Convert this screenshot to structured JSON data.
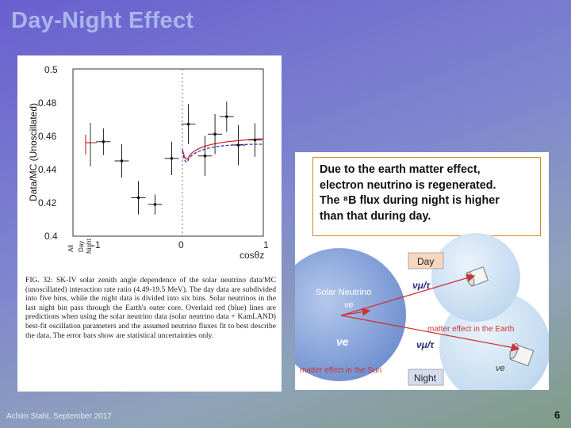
{
  "slide": {
    "title": "Day-Night Effect",
    "footer": "Achim Stahl, September 2017",
    "page_number": "6"
  },
  "figure": {
    "ylabel": "Data/MC (Unoscillated)",
    "xlabel": "cosθz",
    "y_ticks": [
      "0.5",
      "0.48",
      "0.46",
      "0.44",
      "0.42",
      "0.4"
    ],
    "x_ticks": [
      "-1",
      "0",
      "1"
    ],
    "all_label": "All",
    "day_label": "Day",
    "night_label": "Night",
    "caption": "FIG. 32: SK-IV solar zenith angle dependence of the solar neutrino data/MC (unoscillated) interaction rate ratio (4.49-19.5 MeV). The day data are subdivided into five bins, while the night data is divided into six bins. Solar neutrinos in the last night bin pass through the Earth's outer core. Overlaid red (blue) lines are predictions when using the solar neutrino data (solar neutrino data + KamLAND) best-fit oscillation parameters and the assumed neutrino fluxes fit to best describe the data. The error bars show are statistical uncertainties only."
  },
  "chart_data": {
    "type": "scatter",
    "xlabel": "cosθz",
    "ylabel": "Data/MC (Unoscillated)",
    "xlim": [
      -1,
      1
    ],
    "ylim": [
      0.4,
      0.5
    ],
    "series": [
      {
        "points": [
          {
            "x": -0.92,
            "y": 0.4565,
            "yerr": 0.008
          },
          {
            "x": -0.7,
            "y": 0.445,
            "yerr": 0.01
          },
          {
            "x": -0.5,
            "y": 0.423,
            "yerr": 0.01
          },
          {
            "x": -0.3,
            "y": 0.419,
            "yerr": 0.006
          },
          {
            "x": -0.1,
            "y": 0.4465,
            "yerr": 0.01
          },
          {
            "x": 0.1,
            "y": 0.467,
            "yerr": 0.012
          },
          {
            "x": 0.3,
            "y": 0.448,
            "yerr": 0.012
          },
          {
            "x": 0.42,
            "y": 0.461,
            "yerr": 0.012
          },
          {
            "x": 0.56,
            "y": 0.4715,
            "yerr": 0.009
          },
          {
            "x": 0.7,
            "y": 0.4545,
            "yerr": 0.012
          },
          {
            "x": 0.9,
            "y": 0.4575,
            "yerr": 0.01
          }
        ]
      }
    ]
  },
  "diagram": {
    "text_lines": [
      "Due to the earth matter effect,",
      "electron neutrino is regenerated.",
      "The ⁸B flux during night is higher",
      "than that during day."
    ],
    "day_label": "Day",
    "night_label": "Night",
    "solar_neutrino_label": "Solar Neutrino",
    "nu_e_small": "νe",
    "nu_e_large": "νe",
    "nu_mu_tau_top": "νμ/τ",
    "nu_mu_tau_bottom": "νμ/τ",
    "nu_e_earth": "νe",
    "matter_earth": "matter effect in the Earth",
    "matter_sun": "matter effect in the Sun"
  }
}
